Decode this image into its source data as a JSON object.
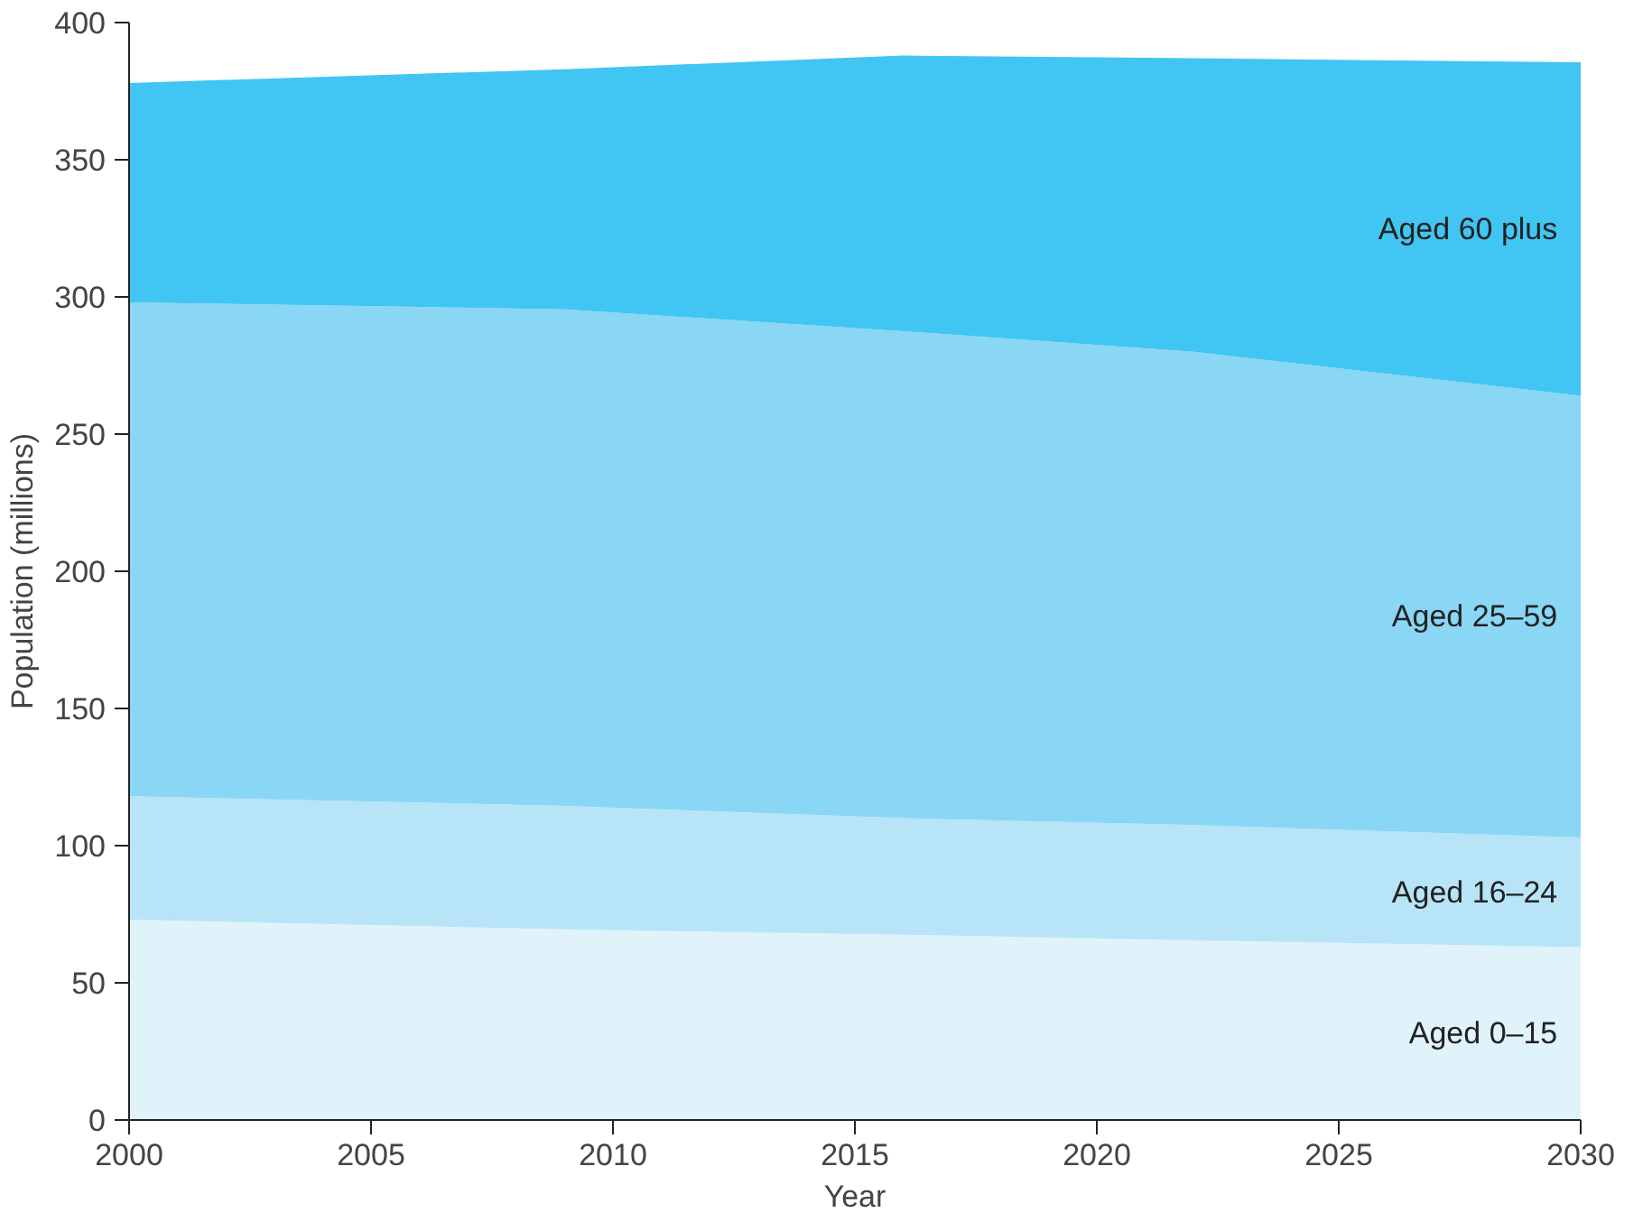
{
  "chart_data": {
    "type": "area",
    "stacked": true,
    "xlabel": "Year",
    "ylabel": "Population (millions)",
    "x": [
      2000,
      2009,
      2016,
      2022,
      2030
    ],
    "series": [
      {
        "name": "Aged 0–15",
        "color": "#e0f3fb",
        "values": [
          73,
          69.5,
          67.5,
          65.5,
          63
        ]
      },
      {
        "name": "Aged 16–24",
        "color": "#b8e4f8",
        "values": [
          45,
          45,
          42.5,
          42,
          40
        ]
      },
      {
        "name": "Aged 25–59",
        "color": "#8ad6f5",
        "values": [
          180,
          181,
          177.5,
          172.5,
          161
        ]
      },
      {
        "name": "Aged 60 plus",
        "color": "#41c5f2",
        "values": [
          80,
          87.5,
          100.5,
          107,
          121.5
        ]
      }
    ],
    "xlim": [
      2000,
      2030
    ],
    "xticks": [
      2000,
      2005,
      2010,
      2015,
      2020,
      2025,
      2030
    ],
    "ylim": [
      0,
      400
    ],
    "yticks": [
      0,
      50,
      100,
      150,
      200,
      250,
      300,
      350,
      400
    ],
    "grid": false
  }
}
